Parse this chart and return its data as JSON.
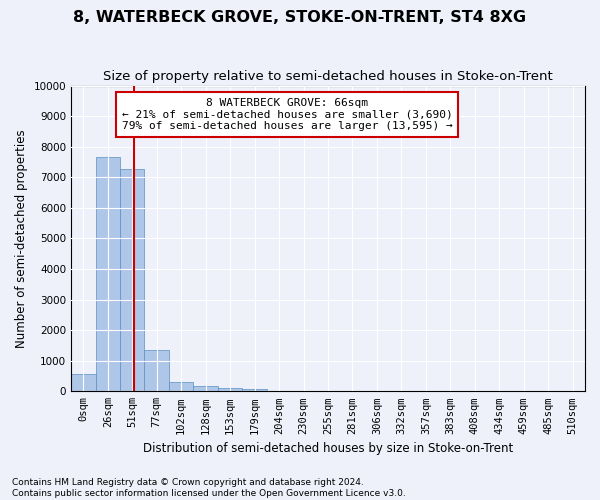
{
  "title": "8, WATERBECK GROVE, STOKE-ON-TRENT, ST4 8XG",
  "subtitle": "Size of property relative to semi-detached houses in Stoke-on-Trent",
  "xlabel": "Distribution of semi-detached houses by size in Stoke-on-Trent",
  "ylabel": "Number of semi-detached properties",
  "footnote": "Contains HM Land Registry data © Crown copyright and database right 2024.\nContains public sector information licensed under the Open Government Licence v3.0.",
  "bar_labels": [
    "0sqm",
    "26sqm",
    "51sqm",
    "77sqm",
    "102sqm",
    "128sqm",
    "153sqm",
    "179sqm",
    "204sqm",
    "230sqm",
    "255sqm",
    "281sqm",
    "306sqm",
    "332sqm",
    "357sqm",
    "383sqm",
    "408sqm",
    "434sqm",
    "459sqm",
    "485sqm",
    "510sqm"
  ],
  "bar_values": [
    570,
    7650,
    7280,
    1350,
    320,
    160,
    110,
    75,
    0,
    0,
    0,
    0,
    0,
    0,
    0,
    0,
    0,
    0,
    0,
    0,
    0
  ],
  "bar_color": "#aec6e8",
  "bar_edge_color": "#5a8fc2",
  "property_line_x": 2.58,
  "annotation_text": "8 WATERBECK GROVE: 66sqm\n← 21% of semi-detached houses are smaller (3,690)\n79% of semi-detached houses are larger (13,595) →",
  "annotation_box_color": "#ffffff",
  "annotation_box_edge_color": "#cc0000",
  "vline_color": "#cc0000",
  "ylim": [
    0,
    10000
  ],
  "yticks": [
    0,
    1000,
    2000,
    3000,
    4000,
    5000,
    6000,
    7000,
    8000,
    9000,
    10000
  ],
  "background_color": "#eef1fa",
  "grid_color": "#ffffff",
  "title_fontsize": 11.5,
  "subtitle_fontsize": 9.5,
  "axis_label_fontsize": 8.5,
  "tick_fontsize": 7.5,
  "annotation_fontsize": 8
}
